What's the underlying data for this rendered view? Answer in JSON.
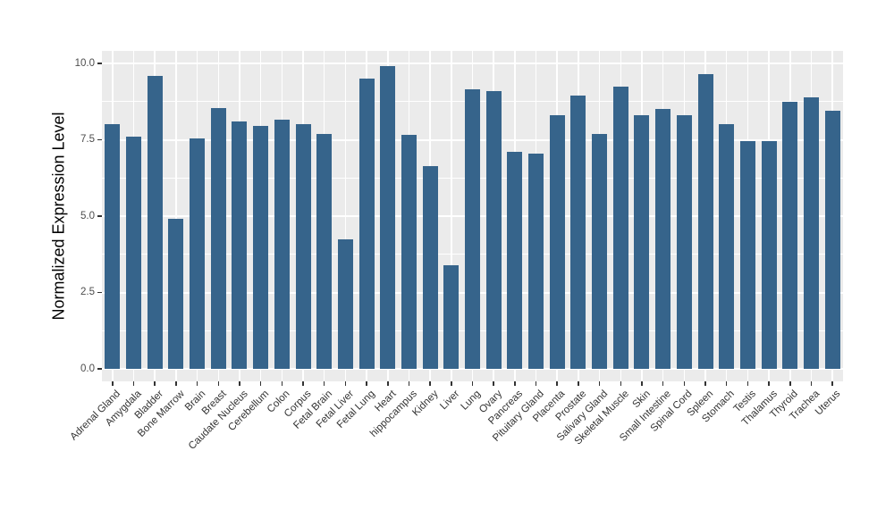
{
  "chart_data": {
    "type": "bar",
    "title": "",
    "xlabel": "",
    "ylabel": "Normalized Expression Level",
    "categories": [
      "Adrenal Gland",
      "Amygdala",
      "Bladder",
      "Bone Marrow",
      "Brain",
      "Breast",
      "Caudate Nucleus",
      "Cerebellum",
      "Colon",
      "Corpus",
      "Fetal Brain",
      "Fetal Liver",
      "Fetal Lung",
      "Heart",
      "hippocampus",
      "Kidney",
      "Liver",
      "Lung",
      "Ovary",
      "Pancreas",
      "Pituitary Gland",
      "Placenta",
      "Prostate",
      "Salivary Gland",
      "Skeletal Muscle",
      "Skin",
      "Small Intestine",
      "Spinal Cord",
      "Spleen",
      "Stomach",
      "Testis",
      "Thalamus",
      "Thyroid",
      "Trachea",
      "Uterus"
    ],
    "values": [
      8.0,
      7.6,
      9.6,
      4.9,
      7.55,
      8.55,
      8.1,
      7.95,
      8.15,
      8.0,
      7.7,
      4.25,
      9.5,
      9.9,
      7.65,
      6.65,
      3.4,
      9.15,
      9.1,
      7.1,
      7.05,
      8.3,
      8.95,
      7.7,
      9.25,
      8.3,
      8.5,
      8.3,
      9.65,
      8.0,
      7.45,
      7.45,
      8.75,
      8.9,
      8.45
    ],
    "ylim": [
      0,
      10
    ],
    "yticks_major": [
      0,
      2.5,
      5,
      7.5,
      10
    ],
    "ytick_labels": [
      "0.0",
      "2.5",
      "5.0",
      "7.5",
      "10.0"
    ],
    "yticks_minor": [
      1.25,
      3.75,
      6.25,
      8.75
    ],
    "x_label_rotation_deg": 45,
    "grid": "horizontal major+minor, vertical major at category centers",
    "legend": "none",
    "colors": {
      "bar_fill": "#36648B",
      "panel_background": "#EBEBEB",
      "gridline": "#FFFFFF",
      "y_tick_label": "#4D4D4D",
      "x_tick_label": "#333333",
      "tick_mark": "#333333",
      "axis_title": "#000000",
      "figure_background": "#FFFFFF"
    }
  }
}
